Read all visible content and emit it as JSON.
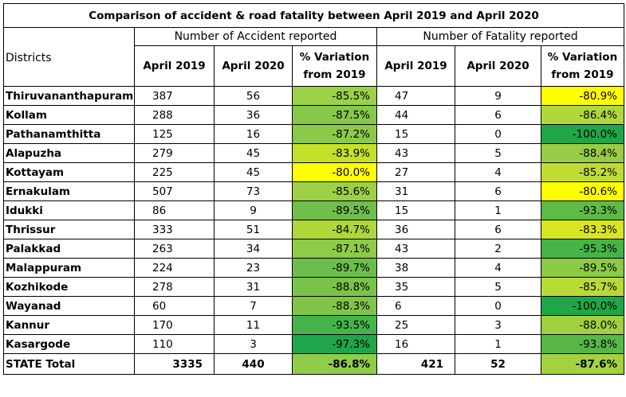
{
  "table": {
    "title": "Comparison of accident & road fatality between April 2019 and April 2020",
    "districts_header": "Districts",
    "accident_group_header": "Number of Accident reported",
    "fatality_group_header": "Number of Fatality reported",
    "col_april_2019": "April 2019",
    "col_april_2020": "April 2020",
    "col_variation": "% Variation from 2019",
    "rows": [
      {
        "district": "Thiruvananthapuram",
        "acc_2019": "387",
        "acc_2020": "56",
        "acc_var": "-85.5%",
        "acc_var_color": "#9bd146",
        "fat_2019": "47",
        "fat_2020": "9",
        "fat_var": "-80.9%",
        "fat_var_color": "#ffff00"
      },
      {
        "district": "Kollam",
        "acc_2019": "288",
        "acc_2020": "36",
        "acc_var": "-87.5%",
        "acc_var_color": "#86c84a",
        "fat_2019": "44",
        "fat_2020": "6",
        "fat_var": "-86.4%",
        "fat_var_color": "#b0d83c"
      },
      {
        "district": "Pathanamthitta",
        "acc_2019": "125",
        "acc_2020": "16",
        "acc_var": "-87.2%",
        "acc_var_color": "#8bca48",
        "fat_2019": "15",
        "fat_2020": "0",
        "fat_var": "-100.0%",
        "fat_var_color": "#1fa647"
      },
      {
        "district": "Alapuzha",
        "acc_2019": "279",
        "acc_2020": "45",
        "acc_var": "-83.9%",
        "acc_var_color": "#c5e02a",
        "fat_2019": "43",
        "fat_2020": "5",
        "fat_var": "-88.4%",
        "fat_var_color": "#98cc44"
      },
      {
        "district": "Kottayam",
        "acc_2019": "225",
        "acc_2020": "45",
        "acc_var": "-80.0%",
        "acc_var_color": "#ffff00",
        "fat_2019": "27",
        "fat_2020": "4",
        "fat_var": "-85.2%",
        "fat_var_color": "#c0dc34"
      },
      {
        "district": "Ernakulam",
        "acc_2019": "507",
        "acc_2020": "73",
        "acc_var": "-85.6%",
        "acc_var_color": "#9cd146",
        "fat_2019": "31",
        "fat_2020": "6",
        "fat_var": "-80.6%",
        "fat_var_color": "#ffff00"
      },
      {
        "district": "Idukki",
        "acc_2019": "86",
        "acc_2020": "9",
        "acc_var": "-89.5%",
        "acc_var_color": "#70bf4c",
        "fat_2019": "15",
        "fat_2020": "1",
        "fat_var": "-93.3%",
        "fat_var_color": "#5fbb47"
      },
      {
        "district": "Thrissur",
        "acc_2019": "333",
        "acc_2020": "51",
        "acc_var": "-84.7%",
        "acc_var_color": "#aed83a",
        "fat_2019": "36",
        "fat_2020": "6",
        "fat_var": "-83.3%",
        "fat_var_color": "#d8e620"
      },
      {
        "district": "Palakkad",
        "acc_2019": "263",
        "acc_2020": "34",
        "acc_var": "-87.1%",
        "acc_var_color": "#8dcb48",
        "fat_2019": "43",
        "fat_2020": "2",
        "fat_var": "-95.3%",
        "fat_var_color": "#45b347"
      },
      {
        "district": "Malappuram",
        "acc_2019": "224",
        "acc_2020": "23",
        "acc_var": "-89.7%",
        "acc_var_color": "#6cbe4c",
        "fat_2019": "38",
        "fat_2020": "4",
        "fat_var": "-89.5%",
        "fat_var_color": "#8cc944"
      },
      {
        "district": "Kozhikode",
        "acc_2019": "278",
        "acc_2020": "31",
        "acc_var": "-88.8%",
        "acc_var_color": "#7ac34a",
        "fat_2019": "35",
        "fat_2020": "5",
        "fat_var": "-85.7%",
        "fat_var_color": "#b8da38"
      },
      {
        "district": "Wayanad",
        "acc_2019": "60",
        "acc_2020": "7",
        "acc_var": "-88.3%",
        "acc_var_color": "#80c54a",
        "fat_2019": "6",
        "fat_2020": "0",
        "fat_var": "-100.0%",
        "fat_var_color": "#1fa647"
      },
      {
        "district": "Kannur",
        "acc_2019": "170",
        "acc_2020": "11",
        "acc_var": "-93.5%",
        "acc_var_color": "#45b54b",
        "fat_2019": "25",
        "fat_2020": "3",
        "fat_var": "-88.0%",
        "fat_var_color": "#a0d040"
      },
      {
        "district": "Kasargode",
        "acc_2019": "110",
        "acc_2020": "3",
        "acc_var": "-97.3%",
        "acc_var_color": "#1fa64a",
        "fat_2019": "16",
        "fat_2020": "1",
        "fat_var": "-93.8%",
        "fat_var_color": "#57b847"
      }
    ],
    "total": {
      "district": "STATE Total",
      "acc_2019": "3335",
      "acc_2020": "440",
      "acc_var": "-86.8%",
      "acc_var_color": "#90cc48",
      "fat_2019": "421",
      "fat_2020": "52",
      "fat_var": "-87.6%",
      "fat_var_color": "#a4d23e"
    }
  }
}
